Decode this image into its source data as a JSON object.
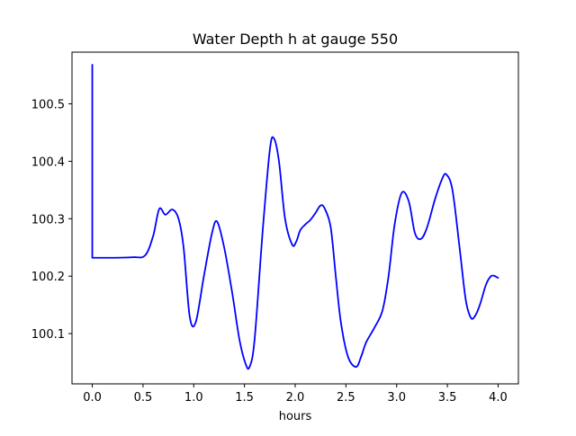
{
  "chart_data": {
    "type": "line",
    "title": "Water Depth h at gauge 550",
    "xlabel": "hours",
    "ylabel": "",
    "xlim": [
      -0.2,
      4.2
    ],
    "ylim": [
      100.0125,
      100.59
    ],
    "x_ticks": [
      0.0,
      0.5,
      1.0,
      1.5,
      2.0,
      2.5,
      3.0,
      3.5,
      4.0
    ],
    "x_tick_labels": [
      "0.0",
      "0.5",
      "1.0",
      "1.5",
      "2.0",
      "2.5",
      "3.0",
      "3.5",
      "4.0"
    ],
    "y_ticks": [
      100.1,
      100.2,
      100.3,
      100.4,
      100.5
    ],
    "y_tick_labels": [
      "100.1",
      "100.2",
      "100.3",
      "100.4",
      "100.5"
    ],
    "grid": false,
    "legend": "none",
    "series": [
      {
        "color": "#0000ff",
        "x": [
          0.0,
          0.0,
          0.0,
          0.2,
          0.4,
          0.52,
          0.6,
          0.66,
          0.72,
          0.79,
          0.85,
          0.9,
          0.96,
          1.02,
          1.1,
          1.18,
          1.23,
          1.3,
          1.38,
          1.45,
          1.51,
          1.55,
          1.6,
          1.68,
          1.75,
          1.79,
          1.84,
          1.9,
          1.97,
          2.01,
          2.05,
          2.1,
          2.15,
          2.2,
          2.25,
          2.29,
          2.35,
          2.4,
          2.45,
          2.52,
          2.6,
          2.65,
          2.7,
          2.78,
          2.86,
          2.92,
          2.98,
          3.05,
          3.12,
          3.18,
          3.24,
          3.3,
          3.38,
          3.45,
          3.49,
          3.55,
          3.62,
          3.68,
          3.73,
          3.77,
          3.82,
          3.88,
          3.93,
          3.97,
          4.0
        ],
        "y": [
          100.568,
          100.232,
          100.232,
          100.232,
          100.233,
          100.236,
          100.27,
          100.317,
          100.307,
          100.316,
          100.3,
          100.25,
          100.13,
          100.12,
          100.2,
          100.275,
          100.295,
          100.25,
          100.17,
          100.09,
          100.048,
          100.042,
          100.09,
          100.28,
          100.42,
          100.44,
          100.4,
          100.3,
          100.255,
          100.26,
          100.28,
          100.29,
          100.298,
          100.31,
          100.323,
          100.318,
          100.285,
          100.2,
          100.12,
          100.06,
          100.042,
          100.06,
          100.085,
          100.11,
          100.14,
          100.2,
          100.29,
          100.345,
          100.33,
          100.275,
          100.265,
          100.285,
          100.335,
          100.37,
          100.377,
          100.35,
          100.25,
          100.16,
          100.128,
          100.13,
          100.15,
          100.185,
          100.2,
          100.2,
          100.197
        ]
      }
    ]
  }
}
